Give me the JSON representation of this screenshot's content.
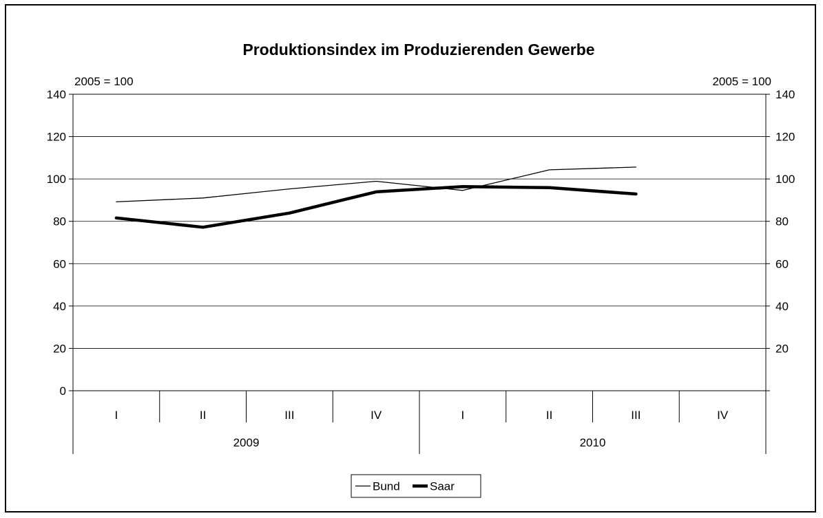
{
  "chart_data": {
    "type": "line",
    "title": "Produktionsindex im Produzierenden Gewerbe",
    "left_unit_label": "2005 = 100",
    "right_unit_label": "2005 = 100",
    "ylim": [
      0,
      140
    ],
    "y_ticks_left": [
      "0",
      "20",
      "40",
      "60",
      "80",
      "100",
      "120",
      "140"
    ],
    "y_ticks_right": [
      "20",
      "40",
      "60",
      "80",
      "100",
      "120",
      "140"
    ],
    "categories": [
      "I",
      "II",
      "III",
      "IV",
      "I",
      "II",
      "III",
      "IV"
    ],
    "groups": [
      {
        "label": "2009",
        "span": 4
      },
      {
        "label": "2010",
        "span": 4
      }
    ],
    "series": [
      {
        "name": "Bund",
        "style": "thin",
        "color": "#000000",
        "values": [
          89.2,
          91.0,
          95.3,
          98.9,
          94.6,
          104.3,
          105.6,
          null
        ]
      },
      {
        "name": "Saar",
        "style": "thick",
        "color": "#000000",
        "values": [
          81.6,
          77.2,
          83.9,
          93.9,
          96.4,
          95.9,
          92.9,
          null
        ]
      }
    ],
    "grid": true,
    "legend_position": "bottom-center"
  }
}
